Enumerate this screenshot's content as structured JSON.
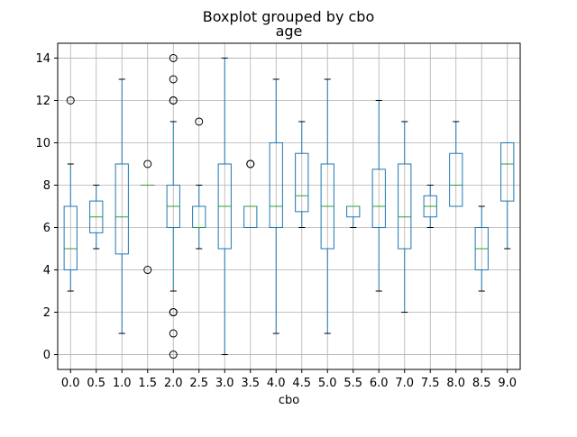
{
  "colors": {
    "box": "#1f77b4",
    "median": "#2ca02c",
    "grid": "#b0b0b0",
    "flier": "#000000",
    "axes": "#000000",
    "background": "#ffffff"
  },
  "chart_data": {
    "type": "boxplot",
    "suptitle": "Boxplot grouped by cbo",
    "title": "age",
    "xlabel": "cbo",
    "ylabel": "",
    "ylim": [
      -0.7,
      14.7
    ],
    "yticks": [
      0,
      2,
      4,
      6,
      8,
      10,
      12,
      14
    ],
    "grid": true,
    "categories": [
      "0.0",
      "0.5",
      "1.0",
      "1.5",
      "2.0",
      "2.5",
      "3.0",
      "3.5",
      "4.0",
      "4.5",
      "5.0",
      "5.5",
      "6.0",
      "7.0",
      "7.5",
      "8.0",
      "8.5",
      "9.0"
    ],
    "boxes": [
      {
        "category": "0.0",
        "whislo": 3,
        "q1": 4,
        "med": 5,
        "q3": 7,
        "whishi": 9,
        "fliers": [
          12
        ]
      },
      {
        "category": "0.5",
        "whislo": 5,
        "q1": 5.75,
        "med": 6.5,
        "q3": 7.25,
        "whishi": 8,
        "fliers": []
      },
      {
        "category": "1.0",
        "whislo": 1,
        "q1": 4.75,
        "med": 6.5,
        "q3": 9,
        "whishi": 13,
        "fliers": []
      },
      {
        "category": "1.5",
        "whislo": 8,
        "q1": 8,
        "med": 8,
        "q3": 8,
        "whishi": 8,
        "fliers": [
          9,
          4
        ]
      },
      {
        "category": "2.0",
        "whislo": 3,
        "q1": 6,
        "med": 7,
        "q3": 8,
        "whishi": 11,
        "fliers": [
          14,
          13,
          12,
          12,
          2,
          2,
          1,
          0
        ]
      },
      {
        "category": "2.5",
        "whislo": 5,
        "q1": 6,
        "med": 6,
        "q3": 7,
        "whishi": 8,
        "fliers": [
          11
        ]
      },
      {
        "category": "3.0",
        "whislo": 0,
        "q1": 5,
        "med": 7,
        "q3": 9,
        "whishi": 14,
        "fliers": []
      },
      {
        "category": "3.5",
        "whislo": 6,
        "q1": 6,
        "med": 7,
        "q3": 7,
        "whishi": 7,
        "fliers": [
          9,
          9
        ]
      },
      {
        "category": "4.0",
        "whislo": 1,
        "q1": 6,
        "med": 7,
        "q3": 10,
        "whishi": 13,
        "fliers": []
      },
      {
        "category": "4.5",
        "whislo": 6,
        "q1": 6.75,
        "med": 7.5,
        "q3": 9.5,
        "whishi": 11,
        "fliers": []
      },
      {
        "category": "5.0",
        "whislo": 1,
        "q1": 5,
        "med": 7,
        "q3": 9,
        "whishi": 13,
        "fliers": []
      },
      {
        "category": "5.5",
        "whislo": 6,
        "q1": 6.5,
        "med": 7,
        "q3": 7,
        "whishi": 7,
        "fliers": []
      },
      {
        "category": "6.0",
        "whislo": 3,
        "q1": 6,
        "med": 7,
        "q3": 8.75,
        "whishi": 12,
        "fliers": []
      },
      {
        "category": "7.0",
        "whislo": 2,
        "q1": 5,
        "med": 6.5,
        "q3": 9,
        "whishi": 11,
        "fliers": []
      },
      {
        "category": "7.5",
        "whislo": 6,
        "q1": 6.5,
        "med": 7,
        "q3": 7.5,
        "whishi": 8,
        "fliers": []
      },
      {
        "category": "8.0",
        "whislo": 7,
        "q1": 7,
        "med": 8,
        "q3": 9.5,
        "whishi": 11,
        "fliers": []
      },
      {
        "category": "8.5",
        "whislo": 3,
        "q1": 4,
        "med": 5,
        "q3": 6,
        "whishi": 7,
        "fliers": []
      },
      {
        "category": "9.0",
        "whislo": 5,
        "q1": 7.25,
        "med": 9,
        "q3": 10,
        "whishi": 10,
        "fliers": []
      }
    ]
  }
}
